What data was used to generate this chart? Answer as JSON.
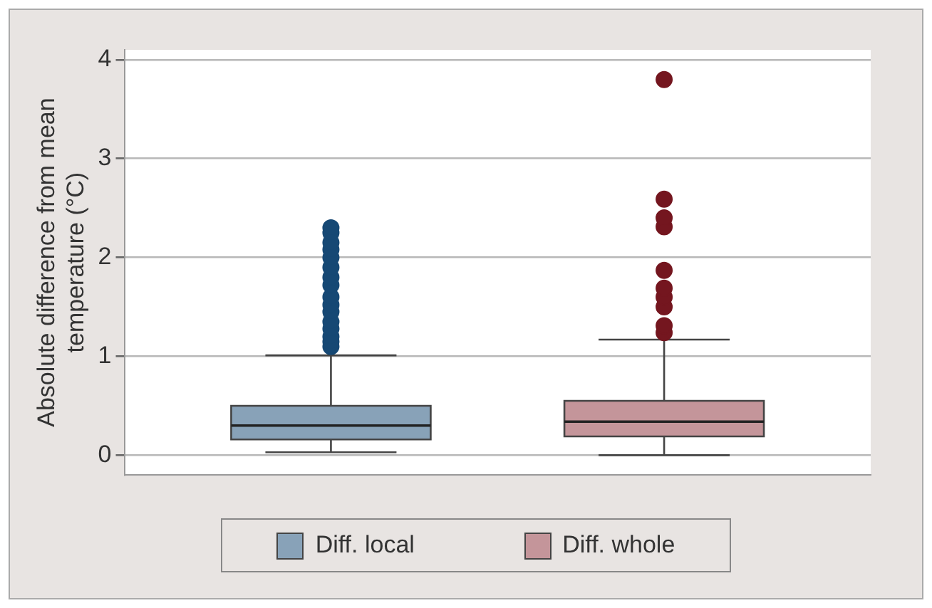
{
  "chart_data": {
    "type": "box",
    "ylabel": "Absolute difference from mean temperature (°C)",
    "categories": [
      null,
      null
    ],
    "ylim": [
      -0.2,
      4.1
    ],
    "yticks": [
      0,
      1,
      2,
      3,
      4
    ],
    "grid": "y",
    "legend": "bottom",
    "series": [
      {
        "name": "Diff. local",
        "color": "#88a2b8",
        "boxes": [
          {
            "low": 0.03,
            "q1": 0.16,
            "median": 0.3,
            "q3": 0.5,
            "high": 1.01,
            "outliers": [
              1.1,
              1.15,
              1.2,
              1.28,
              1.35,
              1.45,
              1.52,
              1.6,
              1.72,
              1.8,
              1.9,
              2.0,
              2.08,
              2.15,
              2.25,
              2.3
            ]
          },
          null
        ]
      },
      {
        "name": "Diff. whole",
        "color": "#c4959a",
        "boxes": [
          null,
          {
            "low": 0,
            "q1": 0.19,
            "median": 0.34,
            "q3": 0.55,
            "high": 1.17,
            "outliers": [
              1.24,
              1.31,
              1.5,
              1.6,
              1.69,
              1.87,
              2.31,
              2.4,
              2.59,
              3.8
            ]
          }
        ]
      }
    ]
  }
}
